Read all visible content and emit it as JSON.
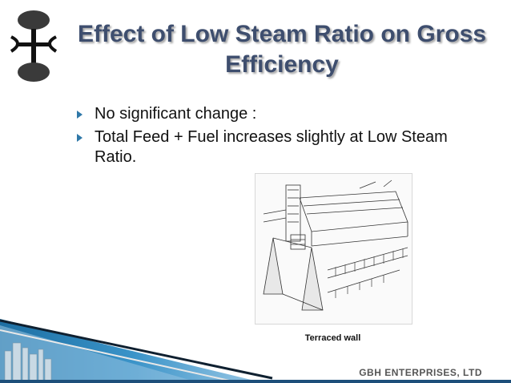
{
  "slide": {
    "title_line1": "Effect of Low Steam Ratio on Gross",
    "title_line2": "Efficiency",
    "bullets": [
      "No significant change :",
      "Total Feed + Fuel increases slightly at Low Steam Ratio."
    ],
    "figure_caption": "Terraced wall",
    "company": "GBH ENTERPRISES, LTD",
    "logo": "gbh-logo-icon",
    "bullet_icon": "triangle-bullet-icon",
    "colors": {
      "title": "#3e4e6e",
      "bullet": "#2f78a8",
      "footer_blue": "#1d6fa3"
    }
  }
}
